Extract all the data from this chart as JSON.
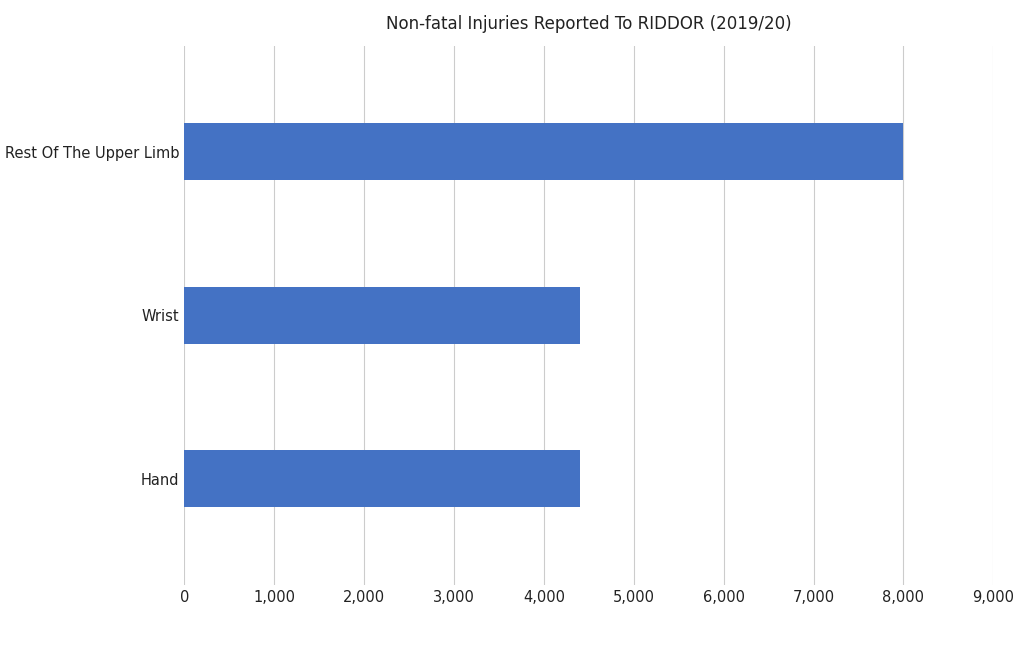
{
  "title": "Non-fatal Injuries Reported To RIDDOR (2019/20)",
  "categories": [
    "Hand",
    "Wrist",
    "Rest Of The Upper Limb"
  ],
  "values": [
    4400,
    4400,
    8000
  ],
  "bar_color": "#4472C4",
  "xlim": [
    0,
    9000
  ],
  "xticks": [
    0,
    1000,
    2000,
    3000,
    4000,
    5000,
    6000,
    7000,
    8000,
    9000
  ],
  "background_color": "#ffffff",
  "title_fontsize": 12,
  "label_fontsize": 10.5,
  "tick_fontsize": 10.5,
  "grid_color": "#cccccc",
  "bar_height": 0.35,
  "ylim": [
    -0.65,
    2.65
  ]
}
